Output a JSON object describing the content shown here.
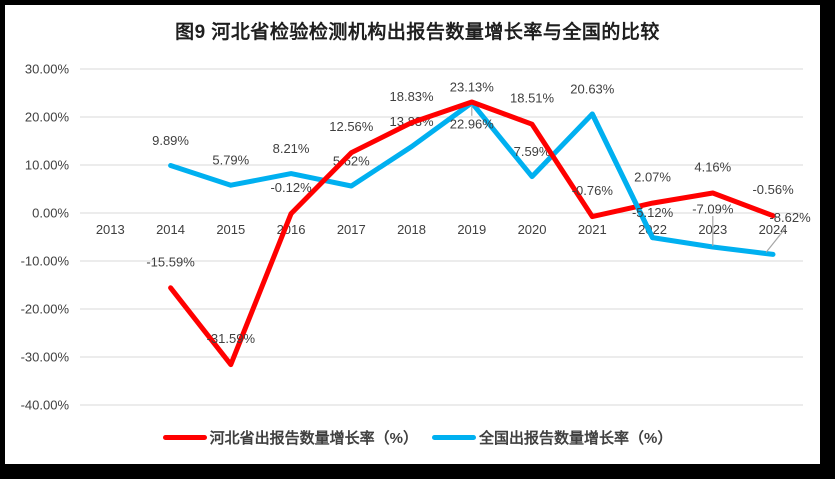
{
  "title": "图9 河北省检验检测机构出报告数量增长率与全国的比较",
  "colors": {
    "background": "#FFFFFF",
    "frame": "#000000",
    "gridline": "#D9D9D9",
    "axis_text": "#404040",
    "label_text": "#404040",
    "leader": "#A6A6A6",
    "hebei_red": "#FF0000",
    "national_blue": "#00B0F0"
  },
  "chart_data": {
    "type": "line",
    "title": "图9 河北省检验检测机构出报告数量增长率与全国的比较",
    "categories": [
      "2013",
      "2014",
      "2015",
      "2016",
      "2017",
      "2018",
      "2019",
      "2020",
      "2021",
      "2022",
      "2023",
      "2024"
    ],
    "y_axis": {
      "min": -40,
      "max": 30,
      "step": 10,
      "ticks": [
        {
          "value": 30,
          "label": "30.00%"
        },
        {
          "value": 20,
          "label": "20.00%"
        },
        {
          "value": 10,
          "label": "10.00%"
        },
        {
          "value": 0,
          "label": "0.00%"
        },
        {
          "value": -10,
          "label": "-10.00%"
        },
        {
          "value": -20,
          "label": "-20.00%"
        },
        {
          "value": -30,
          "label": "-30.00%"
        },
        {
          "value": -40,
          "label": "-40.00%"
        }
      ]
    },
    "grid": true,
    "legend_position": "bottom",
    "series": [
      {
        "key": "hebei",
        "name": "河北省出报告数量增长率（%）",
        "color": "#FF0000",
        "label_dy_default": -26,
        "points": [
          {
            "category": "2014",
            "value": -15.59,
            "label": "-15.59%"
          },
          {
            "category": "2015",
            "value": -31.59,
            "label": "-31.59%"
          },
          {
            "category": "2016",
            "value": -0.12,
            "label": "-0.12%"
          },
          {
            "category": "2017",
            "value": 12.56,
            "label": "12.56%"
          },
          {
            "category": "2018",
            "value": 18.83,
            "label": "18.83%"
          },
          {
            "category": "2019",
            "value": 23.13,
            "label": "23.13%",
            "label_dy": -15
          },
          {
            "category": "2020",
            "value": 18.51,
            "label": "18.51%"
          },
          {
            "category": "2021",
            "value": -0.76,
            "label": "-0.76%"
          },
          {
            "category": "2022",
            "value": 2.07,
            "label": "2.07%"
          },
          {
            "category": "2023",
            "value": 4.16,
            "label": "4.16%"
          },
          {
            "category": "2024",
            "value": -0.56,
            "label": "-0.56%"
          }
        ]
      },
      {
        "key": "national",
        "name": "全国出报告数量增长率（%）",
        "color": "#00B0F0",
        "label_dy_default": -25,
        "points": [
          {
            "category": "2014",
            "value": 9.89,
            "label": "9.89%"
          },
          {
            "category": "2015",
            "value": 5.79,
            "label": "5.79%"
          },
          {
            "category": "2016",
            "value": 8.21,
            "label": "8.21%"
          },
          {
            "category": "2017",
            "value": 5.62,
            "label": "5.62%"
          },
          {
            "category": "2018",
            "value": 13.83,
            "label": "13.83%"
          },
          {
            "category": "2019",
            "value": 22.96,
            "label": "22.96%",
            "label_dy": 21,
            "leader": {
              "from": [
                0,
                3
              ],
              "to": [
                0,
                13
              ]
            }
          },
          {
            "category": "2020",
            "value": 7.59,
            "label": "7.59%"
          },
          {
            "category": "2021",
            "value": 20.63,
            "label": "20.63%"
          },
          {
            "category": "2022",
            "value": -5.12,
            "label": "-5.12%"
          },
          {
            "category": "2023",
            "value": -7.09,
            "label": "-7.09%",
            "label_dy": -38,
            "leader": {
              "from": [
                0,
                -31
              ],
              "to": [
                0,
                -1
              ]
            }
          },
          {
            "category": "2024",
            "value": -8.62,
            "label": "-8.62%",
            "label_dx": 17,
            "label_dy": -37,
            "leader": {
              "from": [
                13,
                -27
              ],
              "to": [
                -7,
                -2
              ]
            }
          }
        ]
      }
    ]
  }
}
